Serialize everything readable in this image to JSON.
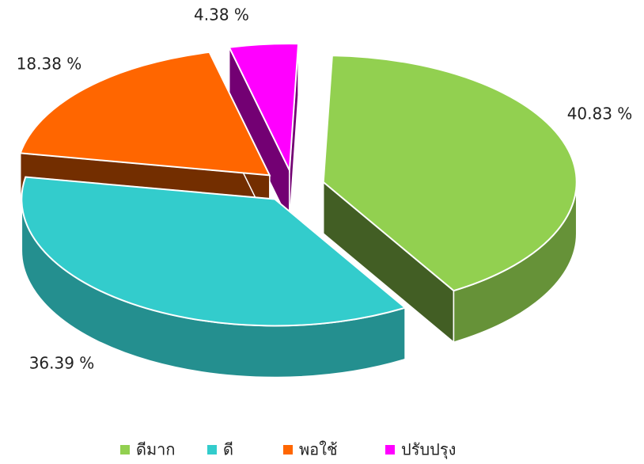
{
  "chart_data": {
    "type": "pie3d",
    "categories": [
      "ดีมาก",
      "ดี",
      "พอใช้",
      "ปรับปรุง"
    ],
    "values": [
      40.83,
      36.39,
      18.38,
      4.38
    ],
    "value_labels": [
      "40.83 %",
      "36.39 %",
      "18.38 %",
      "4.38 %"
    ],
    "colors": [
      "#92d050",
      "#33cccc",
      "#ff6600",
      "#ff00ff"
    ],
    "legend": "bottom"
  }
}
